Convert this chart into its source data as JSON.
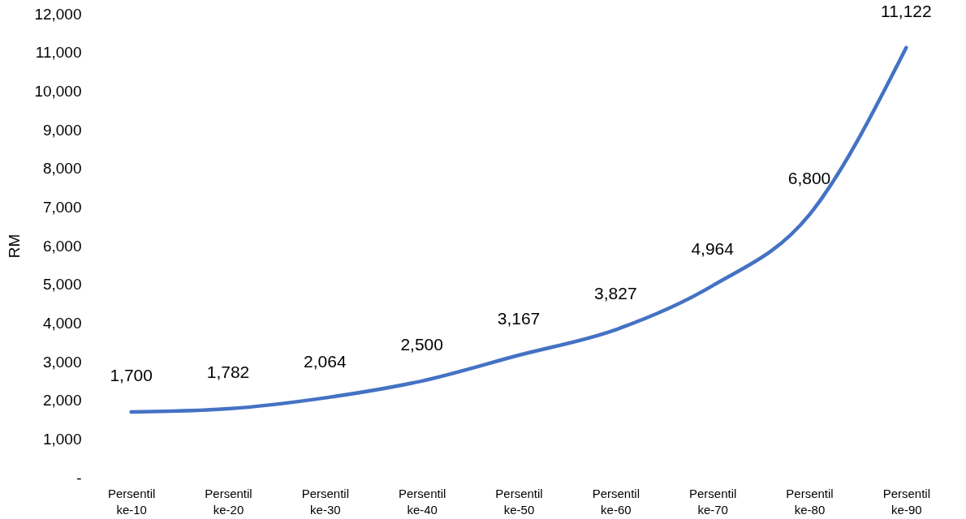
{
  "chart_data": {
    "type": "line",
    "ylabel": "RM",
    "categories": [
      "Persentil ke-10",
      "Persentil ke-20",
      "Persentil ke-30",
      "Persentil ke-40",
      "Persentil ke-50",
      "Persentil ke-60",
      "Persentil ke-70",
      "Persentil ke-80",
      "Persentil ke-90"
    ],
    "series": [
      {
        "color": "#4472c4",
        "values": [
          1700,
          1782,
          2064,
          2500,
          3167,
          3827,
          4964,
          6800,
          11122
        ],
        "value_labels": [
          "1,700",
          "1,782",
          "2,064",
          "2,500",
          "3,167",
          "3,827",
          "4,964",
          "6,800",
          "11,122"
        ]
      }
    ],
    "ylim": [
      0,
      12000
    ],
    "yticks": [
      {
        "value": 0,
        "label": "-"
      },
      {
        "value": 1000,
        "label": "1,000"
      },
      {
        "value": 2000,
        "label": "2,000"
      },
      {
        "value": 3000,
        "label": "3,000"
      },
      {
        "value": 4000,
        "label": "4,000"
      },
      {
        "value": 5000,
        "label": "5,000"
      },
      {
        "value": 6000,
        "label": "6,000"
      },
      {
        "value": 7000,
        "label": "7,000"
      },
      {
        "value": 8000,
        "label": "8,000"
      },
      {
        "value": 9000,
        "label": "9,000"
      },
      {
        "value": 10000,
        "label": "10,000"
      },
      {
        "value": 11000,
        "label": "11,000"
      },
      {
        "value": 12000,
        "label": "12,000"
      }
    ],
    "grid": false,
    "marker": "none",
    "line_style": "solid"
  }
}
